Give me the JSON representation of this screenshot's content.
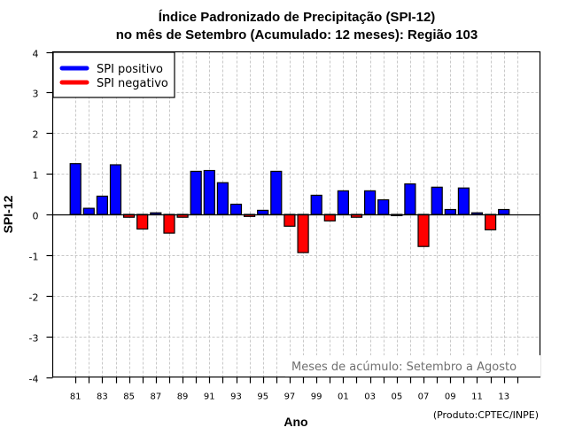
{
  "chart_data": {
    "type": "bar",
    "title": "Índice Padronizado de Precipitação (SPI-12)",
    "subtitle": "no mês de Setembro (Acumulado: 12 meses): Região 103",
    "xlabel": "Ano",
    "ylabel": "SPI-12",
    "ylim": [
      -4,
      4
    ],
    "xlim": [
      1979.3,
      2015.7
    ],
    "y_ticks": [
      "4",
      "3",
      "2",
      "1",
      "0",
      "-1",
      "-2",
      "-3",
      "-4"
    ],
    "y_tick_values": [
      4,
      3,
      2,
      1,
      0,
      -1,
      -2,
      -3,
      -4
    ],
    "x_tick_years": [
      1981,
      1982,
      1983,
      1984,
      1985,
      1986,
      1987,
      1988,
      1989,
      1990,
      1991,
      1992,
      1993,
      1994,
      1995,
      1996,
      1997,
      1998,
      1999,
      2000,
      2001,
      2002,
      2003,
      2004,
      2005,
      2006,
      2007,
      2008,
      2009,
      2010,
      2011,
      2012,
      2013,
      2014
    ],
    "x_tick_labels": [
      "81",
      "83",
      "85",
      "87",
      "89",
      "91",
      "93",
      "95",
      "97",
      "99",
      "01",
      "03",
      "05",
      "07",
      "09",
      "11",
      "13"
    ],
    "x_tick_label_years": [
      1981,
      1983,
      1985,
      1987,
      1989,
      1991,
      1993,
      1995,
      1997,
      1999,
      2001,
      2003,
      2005,
      2007,
      2009,
      2011,
      2013
    ],
    "grid": true,
    "legend": {
      "placement": "top-left",
      "entries": [
        {
          "label": "SPI positivo",
          "color": "#0000ff"
        },
        {
          "label": "SPI negativo",
          "color": "#ff0000"
        }
      ]
    },
    "annotation": "Meses de acúmulo: Setembro a Agosto",
    "credit": "(Produto:CPTEC/INPE)",
    "colors": {
      "positive": "#0000ff",
      "negative": "#ff0000",
      "grid": "#c8c8c8",
      "annotation": "#707070"
    },
    "categories": [
      1981,
      1982,
      1983,
      1984,
      1985,
      1986,
      1987,
      1988,
      1989,
      1990,
      1991,
      1992,
      1993,
      1994,
      1995,
      1996,
      1997,
      1998,
      1999,
      2000,
      2001,
      2002,
      2003,
      2004,
      2005,
      2006,
      2007,
      2008,
      2009,
      2010,
      2011,
      2012,
      2013
    ],
    "values": [
      1.25,
      0.15,
      0.45,
      1.22,
      -0.07,
      -0.36,
      0.04,
      -0.46,
      -0.07,
      1.06,
      1.08,
      0.78,
      0.25,
      -0.05,
      0.1,
      1.06,
      -0.29,
      -0.94,
      0.47,
      -0.16,
      0.58,
      -0.07,
      0.58,
      0.36,
      -0.03,
      0.75,
      -0.79,
      0.67,
      0.12,
      0.65,
      0.04,
      -0.38,
      0.12
    ]
  }
}
